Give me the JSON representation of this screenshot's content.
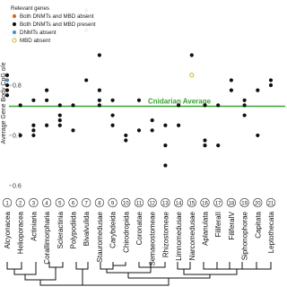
{
  "chart_data": {
    "type": "strip",
    "y_label": "Average Gene Body CpG o/e",
    "average_label": "Cnidarian Average",
    "average": 0.758,
    "average_color": "#3aa335",
    "ylim": [
      0.58,
      0.97
    ],
    "yticks": [
      0.6,
      0.7,
      0.8,
      0.9
    ],
    "legend_title": "Relevant genes",
    "legend_corner": "top-left",
    "numbers": [
      "1",
      "2",
      "3",
      "4",
      "5",
      "6",
      "7",
      "8",
      "9",
      "10",
      "11",
      "12",
      "13",
      "14",
      "15",
      "16",
      "17",
      "18",
      "19",
      "20",
      "21"
    ],
    "categories": [
      "Alcyonacea",
      "Helioporacea",
      "Actiniaria",
      "Corallimorpharia",
      "Scleractinia",
      "Polypodiida",
      "Bivalvulida",
      "Stauromedusae",
      "Carybdeida",
      "Chirodropida",
      "Coronatae",
      "Semaeostomeae",
      "Rhizostomeae",
      "Limnomedusae",
      "Narcomedusae",
      "Aplanulata",
      "FiliferaII",
      "FiliferaIV",
      "Siphonophorae",
      "Capitata",
      "Leptothecata"
    ],
    "series": [
      {
        "name": "Both DNMTs and MBD absent",
        "color": "#d2691e",
        "hollow": false,
        "categories": [
          "Bivalvulida",
          "Bivalvulida",
          "Bivalvulida"
        ],
        "values": [
          0.95,
          0.94,
          0.91
        ]
      },
      {
        "name": "Both DNMTs and MBD present",
        "color": "#111111",
        "hollow": false,
        "categories": [
          "Alcyonacea",
          "Alcyonacea",
          "Alcyonacea",
          "Alcyonacea",
          "Alcyonacea",
          "Helioporacea",
          "Helioporacea",
          "Actiniaria",
          "Actiniaria",
          "Actiniaria",
          "Actiniaria",
          "Corallimorpharia",
          "Corallimorpharia",
          "Corallimorpharia",
          "Scleractinia",
          "Scleractinia",
          "Scleractinia",
          "Scleractinia",
          "Polypodiida",
          "Polypodiida",
          "Bivalvulida",
          "Stauromedusae",
          "Stauromedusae",
          "Stauromedusae",
          "Stauromedusae",
          "Carybdeida",
          "Carybdeida",
          "Carybdeida",
          "Chirodropida",
          "Chirodropida",
          "Coronatae",
          "Coronatae",
          "Semaeostomeae",
          "Semaeostomeae",
          "Rhizostomeae",
          "Rhizostomeae",
          "Rhizostomeae",
          "Limnomedusae",
          "Limnomedusae",
          "Narcomedusae",
          "Aplanulata",
          "Aplanulata",
          "Aplanulata",
          "FiliferaII",
          "FiliferaII",
          "FiliferaIV",
          "FiliferaIV",
          "Siphonophorae",
          "Siphonophorae",
          "Siphonophorae",
          "Capitata",
          "Capitata",
          "Leptothecata",
          "Leptothecata"
        ],
        "values": [
          0.82,
          0.81,
          0.8,
          0.79,
          0.78,
          0.76,
          0.7,
          0.77,
          0.72,
          0.71,
          0.7,
          0.79,
          0.77,
          0.72,
          0.76,
          0.74,
          0.73,
          0.72,
          0.76,
          0.71,
          0.81,
          0.86,
          0.79,
          0.77,
          0.76,
          0.77,
          0.74,
          0.72,
          0.7,
          0.69,
          0.77,
          0.71,
          0.73,
          0.71,
          0.72,
          0.68,
          0.64,
          0.76,
          0.72,
          0.86,
          0.76,
          0.69,
          0.68,
          0.76,
          0.68,
          0.81,
          0.79,
          0.77,
          0.76,
          0.74,
          0.79,
          0.7,
          0.81,
          0.8
        ]
      },
      {
        "name": "DNMTs absent",
        "color": "#4a90c8",
        "hollow": false,
        "categories": [
          "Alcyonacea"
        ],
        "values": [
          0.81
        ]
      },
      {
        "name": "MBD absent",
        "color": "#c8b400",
        "hollow": true,
        "categories": [
          "Narcomedusae"
        ],
        "values": [
          0.82
        ]
      }
    ]
  }
}
